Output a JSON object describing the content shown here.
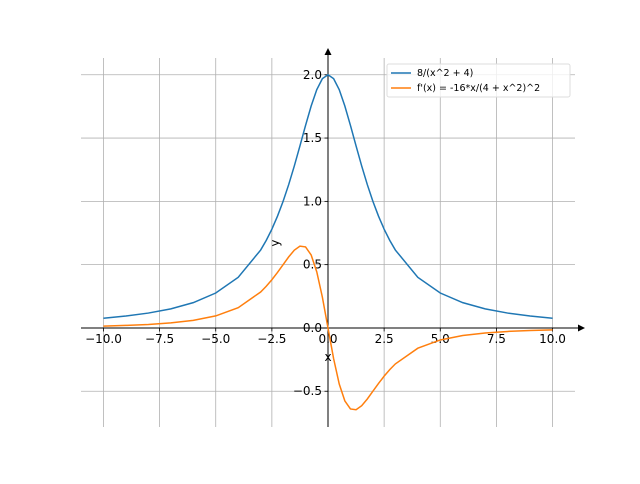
{
  "chart_data": {
    "type": "line",
    "x_label": "x",
    "y_label": "y",
    "x": [
      -10,
      -9,
      -8,
      -7,
      -6,
      -5,
      -4,
      -3,
      -2.75,
      -2.5,
      -2.25,
      -2,
      -1.75,
      -1.5,
      -1.25,
      -1,
      -0.75,
      -0.5,
      -0.25,
      0,
      0.25,
      0.5,
      0.75,
      1,
      1.25,
      1.5,
      1.75,
      2,
      2.25,
      2.5,
      2.75,
      3,
      4,
      5,
      6,
      7,
      8,
      9,
      10
    ],
    "series": [
      {
        "name": "8/(x^2 + 4)",
        "color": "#1f77b4",
        "values": [
          0.0769,
          0.0941,
          0.1176,
          0.1509,
          0.2,
          0.2759,
          0.4,
          0.6154,
          0.6919,
          0.7805,
          0.8828,
          1.0,
          1.1328,
          1.28,
          1.4382,
          1.6,
          1.7534,
          1.8824,
          1.9692,
          2.0,
          1.9692,
          1.8824,
          1.7534,
          1.6,
          1.4382,
          1.28,
          1.1328,
          1.0,
          0.8828,
          0.7805,
          0.6919,
          0.6154,
          0.4,
          0.2759,
          0.2,
          0.1509,
          0.1176,
          0.0941,
          0.0769
        ]
      },
      {
        "name": "f'(x) = -16*x/(4 + x^2)^2",
        "color": "#ff7f0e",
        "values": [
          0.0148,
          0.0199,
          0.0277,
          0.0399,
          0.06,
          0.0951,
          0.16,
          0.284,
          0.3291,
          0.3807,
          0.4383,
          0.5,
          0.5613,
          0.6144,
          0.6464,
          0.64,
          0.5765,
          0.4429,
          0.2424,
          0,
          -0.2424,
          -0.4429,
          -0.5765,
          -0.64,
          -0.6464,
          -0.6144,
          -0.5613,
          -0.5,
          -0.4383,
          -0.3807,
          -0.3291,
          -0.284,
          -0.16,
          -0.0951,
          -0.06,
          -0.0399,
          -0.0277,
          -0.0199,
          -0.0148
        ]
      }
    ],
    "xlim": [
      -11,
      11
    ],
    "ylim": [
      -0.7825,
      2.1325
    ],
    "xticks": [
      {
        "value": -10,
        "label": "−10.0"
      },
      {
        "value": -7.5,
        "label": "−7.5"
      },
      {
        "value": -5,
        "label": "−5.0"
      },
      {
        "value": -2.5,
        "label": "−2.5"
      },
      {
        "value": 0,
        "label": "0.0"
      },
      {
        "value": 2.5,
        "label": "2.5"
      },
      {
        "value": 5,
        "label": "5.0"
      },
      {
        "value": 7.5,
        "label": "7.5"
      },
      {
        "value": 10,
        "label": "10.0"
      }
    ],
    "yticks": [
      {
        "value": -0.5,
        "label": "−0.5"
      },
      {
        "value": 0,
        "label": "0.0"
      },
      {
        "value": 0.5,
        "label": "0.5"
      },
      {
        "value": 1,
        "label": "1.0"
      },
      {
        "value": 1.5,
        "label": "1.5"
      },
      {
        "value": 2,
        "label": "2.0"
      }
    ],
    "grid": true,
    "legend": "upper right"
  }
}
